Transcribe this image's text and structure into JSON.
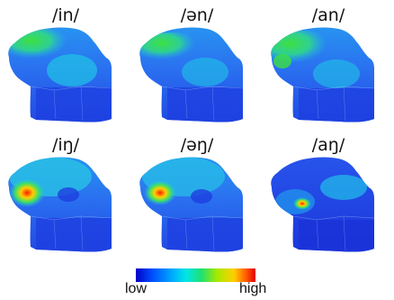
{
  "labels": [
    "/in/",
    "/ən/",
    "/an/",
    "/iŋ/",
    "/əŋ/",
    "/aŋ/"
  ],
  "colorbar": {
    "low": "low",
    "high": "high"
  },
  "colors": {
    "deep_blue": "#1f3fe0",
    "blue": "#2d7cf2",
    "cyan": "#19c6e6",
    "green": "#39e052",
    "yellow": "#ffe000",
    "red": "#e00000"
  }
}
